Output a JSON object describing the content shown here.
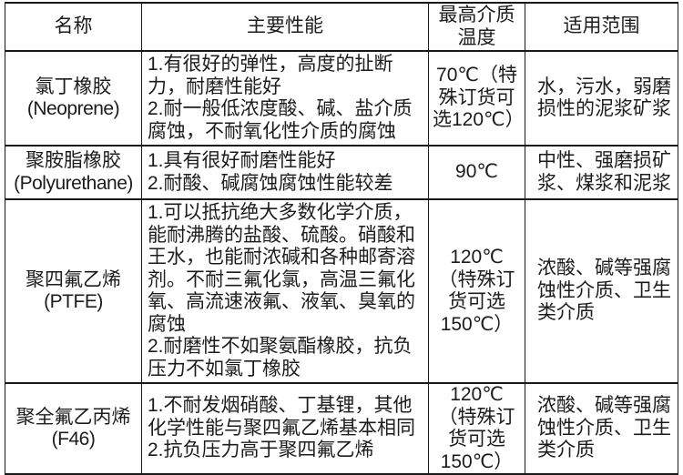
{
  "page": {
    "background_color": "#ffffff",
    "border_color": "#1a1a1a",
    "text_color": "#1c1c1c"
  },
  "table": {
    "columns": [
      "名称",
      "主要性能",
      "最高介质温度",
      "适用范围"
    ],
    "rows": [
      {
        "name": "氯丁橡胶",
        "alias": "(Neoprene)",
        "performance": [
          "1.有很好的弹性，高度的扯断力，耐磨性能好",
          "2.耐一般低浓度酸、碱、盐介质腐蚀，不耐氧化性介质的腐蚀"
        ],
        "max_temperature": "70℃（特殊订货可选120℃）",
        "application": "水，污水，弱磨损性的泥浆矿浆"
      },
      {
        "name": "聚胺脂橡胶",
        "alias": "(Polyurethane)",
        "performance": [
          "1.具有很好耐磨性能好",
          "2.耐酸、碱腐蚀腐蚀性能较差"
        ],
        "max_temperature": "90℃",
        "application": "中性、强磨损矿浆、煤浆和泥浆"
      },
      {
        "name": "聚四氟乙烯",
        "alias": "(PTFE)",
        "performance": [
          "1.可以抵抗绝大多数化学介质，能耐沸腾的盐酸、硫酸。硝酸和王水，也能耐浓碱和各种邮寄溶剂。不耐三氟化氯，高温三氟化氧、高流速液氟、液氧、臭氧的腐蚀",
          "2.耐磨性不如聚氨酯橡胶，抗负压力不如氯丁橡胶"
        ],
        "max_temperature": "120℃（特殊订货可选150℃）",
        "application": "浓酸、碱等强腐蚀性介质、卫生类介质"
      },
      {
        "name": "聚全氟乙丙烯",
        "alias": "(F46)",
        "performance": [
          "1.不耐发烟硝酸、丁基锂，其他化学性能与聚四氟乙烯基本相同",
          "2.抗负压力高于聚四氟乙烯"
        ],
        "max_temperature": "120℃（特殊订货可选150℃）",
        "application": "浓酸、碱等强腐蚀性介质、卫生类介质"
      }
    ]
  }
}
